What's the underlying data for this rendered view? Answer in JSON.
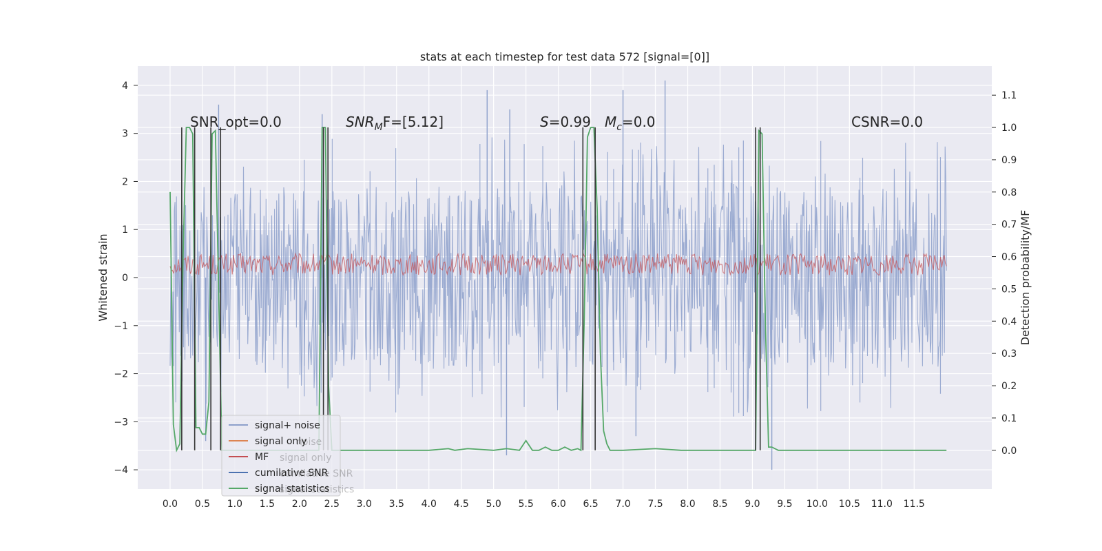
{
  "chart_data": {
    "type": "line",
    "title": "stats at each timestep for test data 572 [signal=[0]]",
    "xlabel": "",
    "ylabel": "Whitened strain",
    "y2label": "Detection probability/MF",
    "xlim": [
      -0.5,
      12.7
    ],
    "ylim": [
      -4.4,
      4.4
    ],
    "y2lim": [
      -0.12,
      1.19
    ],
    "grid": true,
    "legend_position": "lower-left",
    "x_ticks": [
      "0.0",
      "0.5",
      "1.0",
      "1.5",
      "2.0",
      "2.5",
      "3.0",
      "3.5",
      "4.0",
      "4.5",
      "5.0",
      "5.5",
      "6.0",
      "6.5",
      "7.0",
      "7.5",
      "8.0",
      "8.5",
      "9.0",
      "9.5",
      "10.0",
      "10.5",
      "11.0",
      "11.5"
    ],
    "y_ticks": [
      "−4",
      "−3",
      "−2",
      "−1",
      "0",
      "1",
      "2",
      "3",
      "4"
    ],
    "y2_ticks": [
      "0.0",
      "0.1",
      "0.2",
      "0.3",
      "0.4",
      "0.5",
      "0.6",
      "0.7",
      "0.8",
      "0.9",
      "1.0",
      "1.1"
    ],
    "annotations": {
      "snr_opt": "SNR_opt=0.0",
      "snr_mf_sym": "SNR",
      "snr_mf_sub": "M",
      "snr_mf_rest": "F=[5.12]",
      "s_sym": "S",
      "s_val": "=0.99",
      "mc_sym": "M",
      "mc_sub": "c",
      "mc_val": "=0.0",
      "csnr": "CSNR=0.0"
    },
    "legend": [
      {
        "label": "signal+ noise",
        "color": "#8da0cb"
      },
      {
        "label": "signal only",
        "color": "#dd8452"
      },
      {
        "label": "MF",
        "color": "#c44e52"
      },
      {
        "label": "cumilative SNR",
        "color": "#4c72b0"
      },
      {
        "label": "signal statistics",
        "color": "#55a868"
      }
    ],
    "ghost_legend": [
      "noise",
      "signal only",
      "cumilative SNR",
      "signal statistics"
    ],
    "series": [
      {
        "name": "signal+ noise",
        "axis": "left",
        "color": "#8da0cb",
        "x_range": [
          0.0,
          12.0
        ],
        "band_upper": 1.9,
        "band_lower": -1.9,
        "peak_x": [
          0.75,
          2.35,
          4.9,
          5.25,
          7.0,
          7.65,
          9.3,
          0.55,
          5.2,
          7.2
        ],
        "peak_y": [
          3.6,
          3.4,
          3.9,
          3.5,
          3.9,
          4.1,
          -4.0,
          -3.4,
          -3.7,
          -3.3
        ]
      },
      {
        "name": "MF",
        "axis": "left",
        "color": "#c44e52",
        "x_range": [
          0.0,
          12.0
        ],
        "band_upper": 0.5,
        "band_lower": 0.05
      },
      {
        "name": "signal statistics",
        "axis": "right",
        "color": "#55a868",
        "x": [
          0.0,
          0.05,
          0.1,
          0.15,
          0.2,
          0.25,
          0.3,
          0.35,
          0.4,
          0.45,
          0.5,
          0.55,
          0.6,
          0.65,
          0.7,
          0.75,
          0.8,
          0.85,
          2.3,
          2.35,
          2.4,
          2.45,
          2.5,
          2.55,
          2.6,
          3.0,
          4.0,
          4.3,
          4.4,
          4.6,
          5.0,
          5.2,
          5.4,
          5.5,
          5.6,
          5.7,
          5.8,
          5.9,
          6.0,
          6.1,
          6.2,
          6.3,
          6.35,
          6.4,
          6.45,
          6.5,
          6.55,
          6.6,
          6.65,
          6.7,
          6.75,
          6.8,
          6.85,
          7.0,
          7.5,
          7.9,
          8.0,
          9.0,
          9.05,
          9.1,
          9.15,
          9.2,
          9.25,
          9.3,
          9.4,
          9.5,
          12.0
        ],
        "y": [
          0.8,
          0.08,
          0.0,
          0.02,
          0.6,
          1.0,
          1.0,
          0.98,
          0.07,
          0.07,
          0.05,
          0.05,
          0.15,
          0.98,
          0.99,
          0.5,
          0.0,
          0.0,
          0.0,
          1.0,
          1.0,
          0.2,
          0.0,
          0.0,
          0.0,
          0.0,
          0.0,
          0.005,
          0.0,
          0.005,
          0.0,
          0.005,
          0.0,
          0.03,
          0.0,
          0.0,
          0.01,
          0.0,
          0.0,
          0.01,
          0.0,
          0.005,
          0.0,
          0.4,
          0.97,
          1.0,
          1.0,
          0.75,
          0.3,
          0.06,
          0.02,
          0.0,
          0.0,
          0.0,
          0.005,
          0.0,
          0.0,
          0.0,
          0.0,
          0.99,
          0.98,
          0.4,
          0.01,
          0.01,
          0.0,
          0.0,
          0.0
        ]
      }
    ],
    "vertical_markers": [
      {
        "x": 0.18,
        "ymin": 0.0,
        "ymax": 1.0
      },
      {
        "x": 0.38,
        "ymin": 0.0,
        "ymax": 1.0
      },
      {
        "x": 0.63,
        "ymin": 0.0,
        "ymax": 1.0
      },
      {
        "x": 0.78,
        "ymin": 0.0,
        "ymax": 1.0
      },
      {
        "x": 2.37,
        "ymin": 0.0,
        "ymax": 1.0
      },
      {
        "x": 2.44,
        "ymin": 0.0,
        "ymax": 1.0
      },
      {
        "x": 6.38,
        "ymin": 0.0,
        "ymax": 1.0
      },
      {
        "x": 6.57,
        "ymin": 0.0,
        "ymax": 1.0
      },
      {
        "x": 9.05,
        "ymin": 0.0,
        "ymax": 1.0
      },
      {
        "x": 9.12,
        "ymin": 0.0,
        "ymax": 1.0
      }
    ]
  }
}
